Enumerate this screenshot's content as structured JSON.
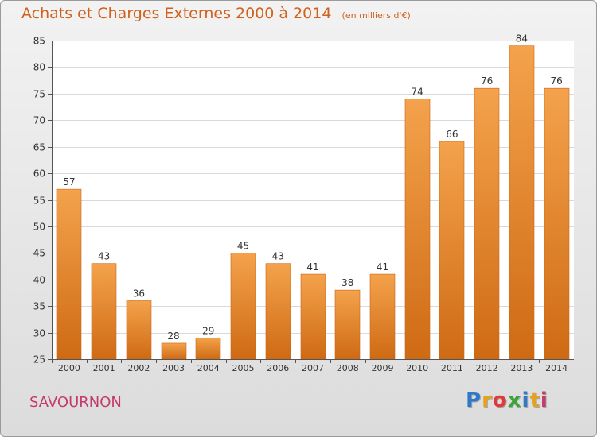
{
  "header": {
    "title": "Achats et Charges Externes 2000 à 2014",
    "unit": "(en milliers d'€)"
  },
  "footer": {
    "commune": "SAVOURNON",
    "logo_text": "Proxiti",
    "logo_colors": [
      "#2f79c9",
      "#e6a21b",
      "#e23a3a",
      "#3aa63a",
      "#2f79c9",
      "#e6a21b",
      "#c53a6d"
    ]
  },
  "chart_data": {
    "type": "bar",
    "categories": [
      "2000",
      "2001",
      "2002",
      "2003",
      "2004",
      "2005",
      "2006",
      "2007",
      "2008",
      "2009",
      "2010",
      "2011",
      "2012",
      "2013",
      "2014"
    ],
    "values": [
      57,
      43,
      36,
      28,
      29,
      45,
      43,
      41,
      38,
      41,
      74,
      66,
      76,
      84,
      76
    ],
    "data_labels": [
      "57",
      "43",
      "36",
      "28",
      "29",
      "45",
      "43",
      "41",
      "38",
      "41",
      "74",
      "66",
      "76",
      "84",
      "76"
    ],
    "ylim": [
      25,
      85
    ],
    "yticks": [
      25,
      30,
      35,
      40,
      45,
      50,
      55,
      60,
      65,
      70,
      75,
      80,
      85
    ],
    "grid": true,
    "bar_color": "#ef923a",
    "bar_color_dark": "#d06f1c"
  }
}
